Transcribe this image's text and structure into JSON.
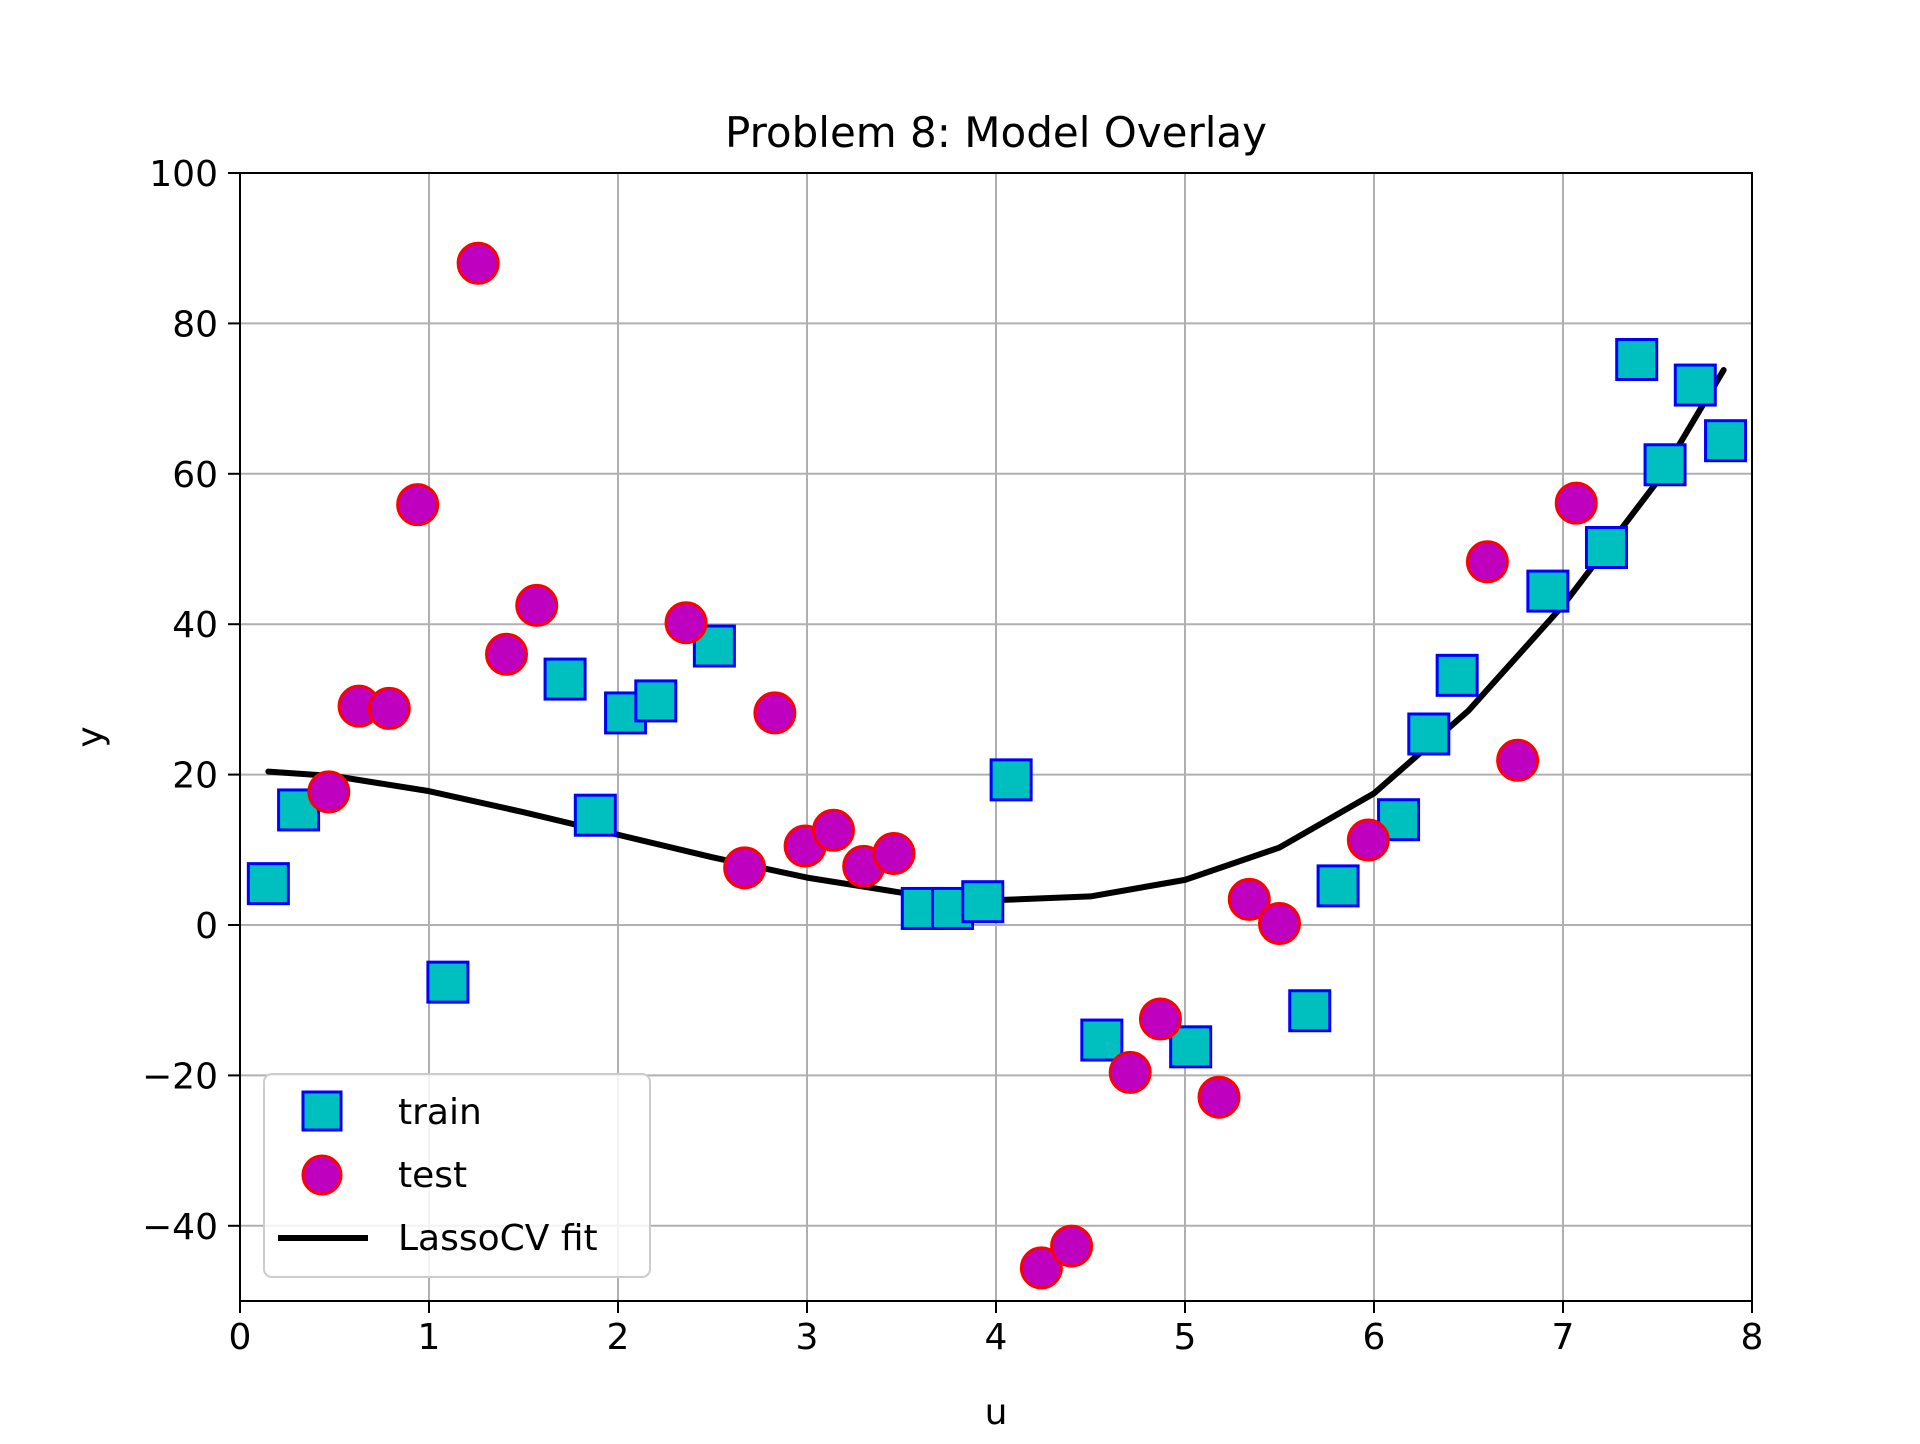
{
  "chart_data": {
    "type": "scatter",
    "title": "Problem 8: Model Overlay",
    "xlabel": "u",
    "ylabel": "y",
    "xlim": [
      0,
      8
    ],
    "ylim": [
      -50,
      100
    ],
    "x_ticks": [
      0,
      1,
      2,
      3,
      4,
      5,
      6,
      7,
      8
    ],
    "y_ticks": [
      -40,
      -20,
      0,
      20,
      40,
      60,
      80,
      100
    ],
    "x_tick_labels": [
      "0",
      "1",
      "2",
      "3",
      "4",
      "5",
      "6",
      "7",
      "8"
    ],
    "y_tick_labels": [
      "−40",
      "−20",
      "0",
      "20",
      "40",
      "60",
      "80",
      "100"
    ],
    "grid": true,
    "legend_position": "lower-left",
    "series": [
      {
        "name": "train",
        "marker": "square",
        "face_color": "#00bfbf",
        "edge_color": "#0000ff",
        "points": [
          {
            "x": 0.15,
            "y": 5.5
          },
          {
            "x": 0.31,
            "y": 15.3
          },
          {
            "x": 1.1,
            "y": -7.6
          },
          {
            "x": 1.72,
            "y": 32.7
          },
          {
            "x": 1.88,
            "y": 14.6
          },
          {
            "x": 2.04,
            "y": 28.2
          },
          {
            "x": 2.2,
            "y": 29.8
          },
          {
            "x": 2.51,
            "y": 37.1
          },
          {
            "x": 3.61,
            "y": 2.2
          },
          {
            "x": 3.77,
            "y": 2.2
          },
          {
            "x": 3.93,
            "y": 3.1
          },
          {
            "x": 4.08,
            "y": 19.3
          },
          {
            "x": 4.56,
            "y": -15.3
          },
          {
            "x": 5.03,
            "y": -16.2
          },
          {
            "x": 5.66,
            "y": -11.4
          },
          {
            "x": 5.81,
            "y": 5.2
          },
          {
            "x": 6.13,
            "y": 14.0
          },
          {
            "x": 6.29,
            "y": 25.4
          },
          {
            "x": 6.44,
            "y": 33.2
          },
          {
            "x": 6.92,
            "y": 44.4
          },
          {
            "x": 7.23,
            "y": 50.2
          },
          {
            "x": 7.39,
            "y": 75.2
          },
          {
            "x": 7.54,
            "y": 61.2
          },
          {
            "x": 7.7,
            "y": 71.8
          },
          {
            "x": 7.86,
            "y": 64.4
          }
        ]
      },
      {
        "name": "test",
        "marker": "circle",
        "face_color": "#bf00bf",
        "edge_color": "#ff0000",
        "points": [
          {
            "x": 0.47,
            "y": 17.7
          },
          {
            "x": 0.63,
            "y": 29.1
          },
          {
            "x": 0.79,
            "y": 28.8
          },
          {
            "x": 0.94,
            "y": 55.9
          },
          {
            "x": 1.26,
            "y": 88.0
          },
          {
            "x": 1.41,
            "y": 36.0
          },
          {
            "x": 1.57,
            "y": 42.5
          },
          {
            "x": 2.36,
            "y": 40.2
          },
          {
            "x": 2.67,
            "y": 7.6
          },
          {
            "x": 2.83,
            "y": 28.2
          },
          {
            "x": 2.99,
            "y": 10.5
          },
          {
            "x": 3.14,
            "y": 12.6
          },
          {
            "x": 3.3,
            "y": 7.8
          },
          {
            "x": 3.46,
            "y": 9.5
          },
          {
            "x": 4.24,
            "y": -45.6
          },
          {
            "x": 4.4,
            "y": -42.7
          },
          {
            "x": 4.71,
            "y": -19.6
          },
          {
            "x": 4.87,
            "y": -12.5
          },
          {
            "x": 5.18,
            "y": -22.9
          },
          {
            "x": 5.34,
            "y": 3.4
          },
          {
            "x": 5.5,
            "y": 0.2
          },
          {
            "x": 5.97,
            "y": 11.3
          },
          {
            "x": 6.6,
            "y": 48.3
          },
          {
            "x": 6.76,
            "y": 21.9
          },
          {
            "x": 7.07,
            "y": 56.1
          }
        ]
      },
      {
        "name": "LassoCV fit",
        "type": "line",
        "color": "#000000",
        "points": [
          {
            "x": 0.15,
            "y": 20.4
          },
          {
            "x": 0.5,
            "y": 19.8
          },
          {
            "x": 1.0,
            "y": 17.8
          },
          {
            "x": 1.5,
            "y": 15.0
          },
          {
            "x": 2.0,
            "y": 12.0
          },
          {
            "x": 2.5,
            "y": 9.0
          },
          {
            "x": 3.0,
            "y": 6.3
          },
          {
            "x": 3.5,
            "y": 4.3
          },
          {
            "x": 4.0,
            "y": 3.3
          },
          {
            "x": 4.5,
            "y": 3.8
          },
          {
            "x": 5.0,
            "y": 6.0
          },
          {
            "x": 5.5,
            "y": 10.3
          },
          {
            "x": 6.0,
            "y": 17.5
          },
          {
            "x": 6.5,
            "y": 28.5
          },
          {
            "x": 7.0,
            "y": 42.5
          },
          {
            "x": 7.5,
            "y": 59.0
          },
          {
            "x": 7.85,
            "y": 73.8
          }
        ]
      }
    ]
  }
}
